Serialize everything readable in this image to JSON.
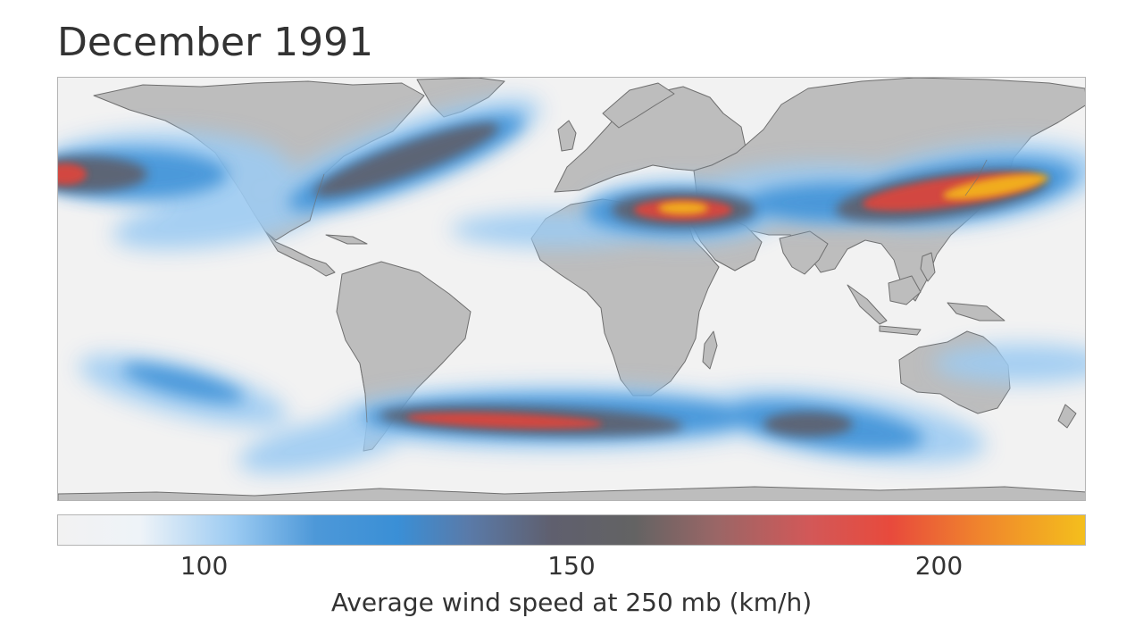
{
  "title": "December 1991",
  "colorbar": {
    "label": "Average wind speed at 250 mb (km/h)",
    "range": [
      80,
      220
    ],
    "ticks": [
      {
        "value": 100,
        "label": "100"
      },
      {
        "value": 150,
        "label": "150"
      },
      {
        "value": 200,
        "label": "200"
      }
    ],
    "colors": [
      "#f2f2f2",
      "#5b9ed6",
      "#3a8fd6",
      "#6e6e86",
      "#636363",
      "#d25858",
      "#e84a3c",
      "#f4c01c"
    ]
  },
  "colors": {
    "land": "#bdbdbd",
    "coastline": "#6f6f6f",
    "ocean_background": "#f2f2f2",
    "text": "#333333"
  }
}
